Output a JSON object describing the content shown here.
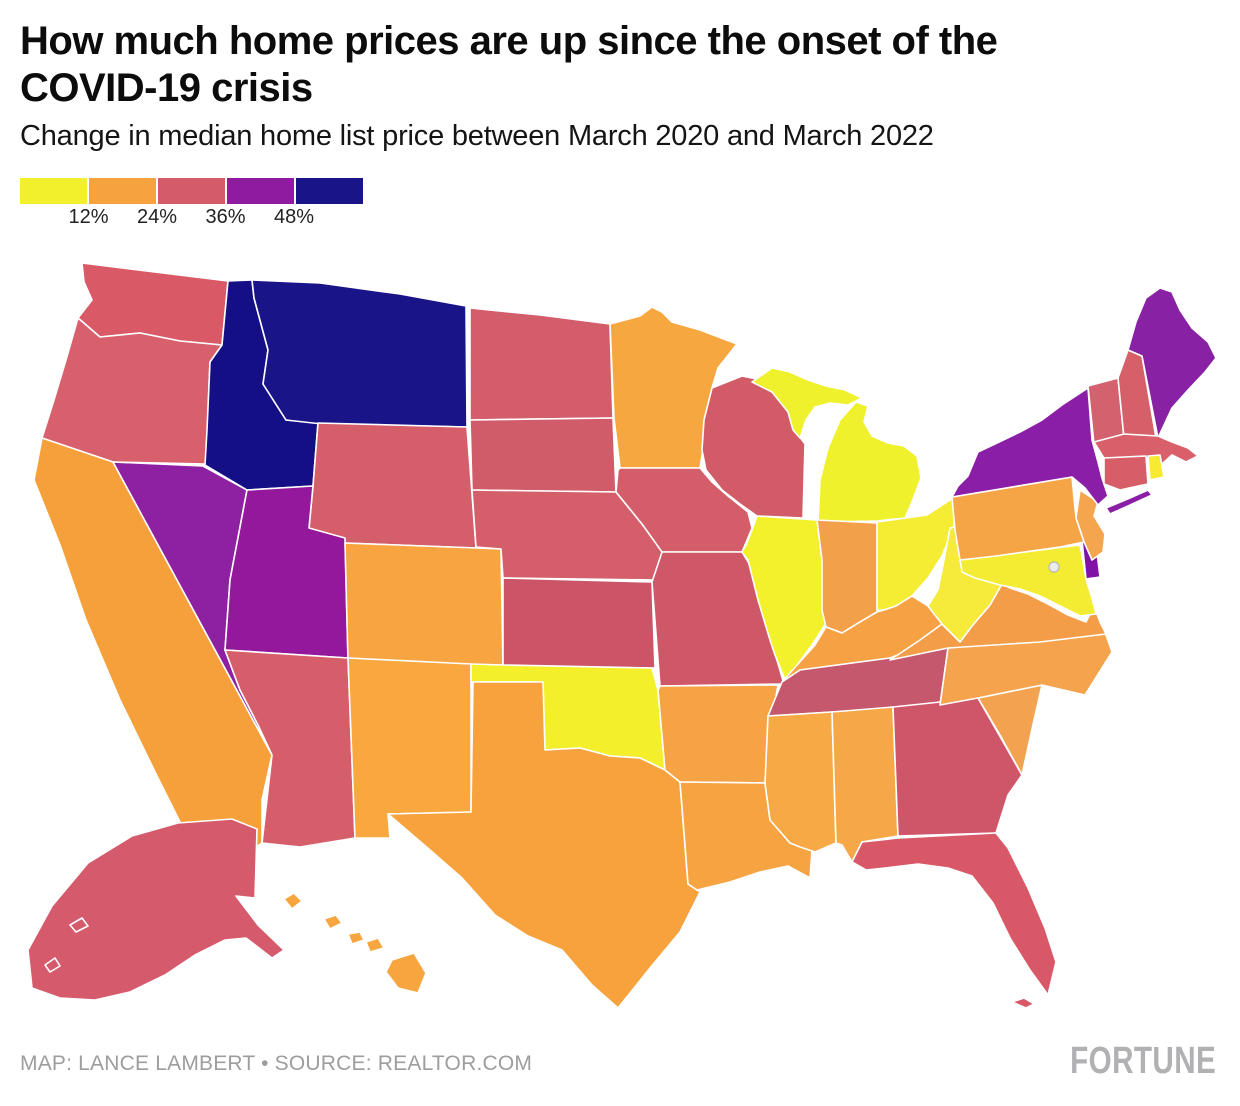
{
  "header": {
    "title_line1": "How much home prices are up since the onset of the",
    "title_line2": "COVID-19 crisis",
    "subtitle": "Change in median home list price between March 2020 and March 2022"
  },
  "legend": {
    "tick_labels": [
      "12%",
      "24%",
      "36%",
      "48%"
    ],
    "colors": [
      "#F2EF2D",
      "#F6A23F",
      "#D45C68",
      "#8E1BA0",
      "#1A1489"
    ]
  },
  "footer": {
    "credit": "MAP: LANCE LAMBERT • SOURCE: REALTOR.COM",
    "brand": "FORTUNE"
  },
  "chart_data": {
    "type": "choropleth",
    "title": "How much home prices are up since the onset of the COVID-19 crisis",
    "subtitle": "Change in median home list price between March 2020 and March 2022",
    "legend": {
      "tick_labels_pct": [
        12,
        24,
        36,
        48
      ],
      "bucket_colors": [
        "#F2EF2D",
        "#F6A23F",
        "#D45C68",
        "#8E1BA0",
        "#1A1489"
      ],
      "bucket_ranges": [
        "under 12%",
        "12–24%",
        "24–36%",
        "36–48%",
        "over 48%"
      ]
    },
    "states": [
      {
        "abbr": "WA",
        "name": "Washington",
        "color": "#D95A66",
        "bucket": "24–36%"
      },
      {
        "abbr": "OR",
        "name": "Oregon",
        "color": "#D7606C",
        "bucket": "24–36%"
      },
      {
        "abbr": "CA",
        "name": "California",
        "color": "#F6A03C",
        "bucket": "12–24%"
      },
      {
        "abbr": "NV",
        "name": "Nevada",
        "color": "#8E21A2",
        "bucket": "36–48%"
      },
      {
        "abbr": "ID",
        "name": "Idaho",
        "color": "#150F85",
        "bucket": "over 48%"
      },
      {
        "abbr": "MT",
        "name": "Montana",
        "color": "#1A1489",
        "bucket": "over 48%"
      },
      {
        "abbr": "WY",
        "name": "Wyoming",
        "color": "#D45F6B",
        "bucket": "24–36%"
      },
      {
        "abbr": "UT",
        "name": "Utah",
        "color": "#94189C",
        "bucket": "36–48%"
      },
      {
        "abbr": "CO",
        "name": "Colorado",
        "color": "#F7A441",
        "bucket": "12–24%"
      },
      {
        "abbr": "AZ",
        "name": "Arizona",
        "color": "#D65E6A",
        "bucket": "24–36%"
      },
      {
        "abbr": "NM",
        "name": "New Mexico",
        "color": "#F8A83F",
        "bucket": "12–24%"
      },
      {
        "abbr": "ND",
        "name": "North Dakota",
        "color": "#D35D6A",
        "bucket": "24–36%"
      },
      {
        "abbr": "SD",
        "name": "South Dakota",
        "color": "#D15C69",
        "bucket": "24–36%"
      },
      {
        "abbr": "NE",
        "name": "Nebraska",
        "color": "#D45F6B",
        "bucket": "24–36%"
      },
      {
        "abbr": "KS",
        "name": "Kansas",
        "color": "#CB5566",
        "bucket": "24–36%"
      },
      {
        "abbr": "OK",
        "name": "Oklahoma",
        "color": "#F3F02B",
        "bucket": "under 12%"
      },
      {
        "abbr": "TX",
        "name": "Texas",
        "color": "#F7A23C",
        "bucket": "12–24%"
      },
      {
        "abbr": "MN",
        "name": "Minnesota",
        "color": "#F7A73F",
        "bucket": "12–24%"
      },
      {
        "abbr": "IA",
        "name": "Iowa",
        "color": "#D35D69",
        "bucket": "24–36%"
      },
      {
        "abbr": "MO",
        "name": "Missouri",
        "color": "#CE5868",
        "bucket": "24–36%"
      },
      {
        "abbr": "AR",
        "name": "Arkansas",
        "color": "#F6A345",
        "bucket": "12–24%"
      },
      {
        "abbr": "LA",
        "name": "Louisiana",
        "color": "#F6A441",
        "bucket": "12–24%"
      },
      {
        "abbr": "WI",
        "name": "Wisconsin",
        "color": "#D25B68",
        "bucket": "24–36%"
      },
      {
        "abbr": "IL",
        "name": "Illinois",
        "color": "#F2F12C",
        "bucket": "under 12%"
      },
      {
        "abbr": "MI",
        "name": "Michigan",
        "color": "#EEF12B",
        "bucket": "under 12%"
      },
      {
        "abbr": "IN",
        "name": "Indiana",
        "color": "#F3A04A",
        "bucket": "12–24%"
      },
      {
        "abbr": "OH",
        "name": "Ohio",
        "color": "#F4ED34",
        "bucket": "under 12%"
      },
      {
        "abbr": "KY",
        "name": "Kentucky",
        "color": "#F5A144",
        "bucket": "12–24%"
      },
      {
        "abbr": "TN",
        "name": "Tennessee",
        "color": "#C5586C",
        "bucket": "24–36%"
      },
      {
        "abbr": "MS",
        "name": "Mississippi",
        "color": "#F7A945",
        "bucket": "12–24%"
      },
      {
        "abbr": "AL",
        "name": "Alabama",
        "color": "#F6A747",
        "bucket": "12–24%"
      },
      {
        "abbr": "GA",
        "name": "Georgia",
        "color": "#CF5569",
        "bucket": "24–36%"
      },
      {
        "abbr": "FL",
        "name": "Florida",
        "color": "#D95868",
        "bucket": "24–36%"
      },
      {
        "abbr": "SC",
        "name": "South Carolina",
        "color": "#F3A350",
        "bucket": "12–24%"
      },
      {
        "abbr": "NC",
        "name": "North Carolina",
        "color": "#F5A34C",
        "bucket": "12–24%"
      },
      {
        "abbr": "VA",
        "name": "Virginia",
        "color": "#F39D48",
        "bucket": "12–24%"
      },
      {
        "abbr": "WV",
        "name": "West Virginia",
        "color": "#F6EA3A",
        "bucket": "under 12%"
      },
      {
        "abbr": "MD",
        "name": "Maryland",
        "color": "#F3EC33",
        "bucket": "under 12%"
      },
      {
        "abbr": "DE",
        "name": "Delaware",
        "color": "#8012A8",
        "bucket": "36–48%"
      },
      {
        "abbr": "NJ",
        "name": "New Jersey",
        "color": "#F4A54D",
        "bucket": "12–24%"
      },
      {
        "abbr": "PA",
        "name": "Pennsylvania",
        "color": "#F6A546",
        "bucket": "12–24%"
      },
      {
        "abbr": "NY",
        "name": "New York",
        "color": "#8A1EA6",
        "bucket": "36–48%"
      },
      {
        "abbr": "VT",
        "name": "Vermont",
        "color": "#D3616E",
        "bucket": "24–36%"
      },
      {
        "abbr": "NH",
        "name": "New Hampshire",
        "color": "#D66069",
        "bucket": "24–36%"
      },
      {
        "abbr": "ME",
        "name": "Maine",
        "color": "#8821A4",
        "bucket": "36–48%"
      },
      {
        "abbr": "MA",
        "name": "Massachusetts",
        "color": "#D95F6B",
        "bucket": "24–36%"
      },
      {
        "abbr": "CT",
        "name": "Connecticut",
        "color": "#D75E69",
        "bucket": "24–36%"
      },
      {
        "abbr": "RI",
        "name": "Rhode Island",
        "color": "#F7EA33",
        "bucket": "under 12%"
      },
      {
        "abbr": "AK",
        "name": "Alaska",
        "color": "#D55A6B",
        "bucket": "24–36%"
      },
      {
        "abbr": "HI",
        "name": "Hawaii",
        "color": "#F7A63F",
        "bucket": "12–24%"
      },
      {
        "abbr": "DC",
        "name": "District of Columbia",
        "color": "#ECECEF",
        "bucket": ""
      }
    ]
  }
}
